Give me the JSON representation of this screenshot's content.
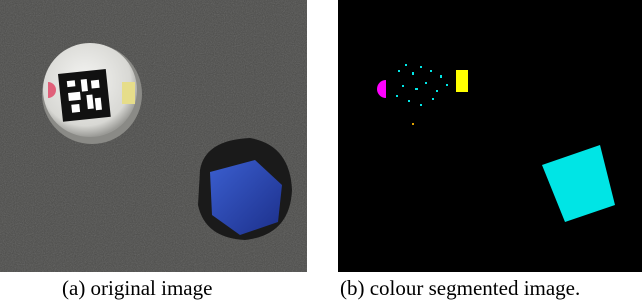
{
  "figure": {
    "panels": [
      {
        "caption": "(a) original image"
      },
      {
        "caption": "(b) colour segmented image."
      }
    ]
  }
}
